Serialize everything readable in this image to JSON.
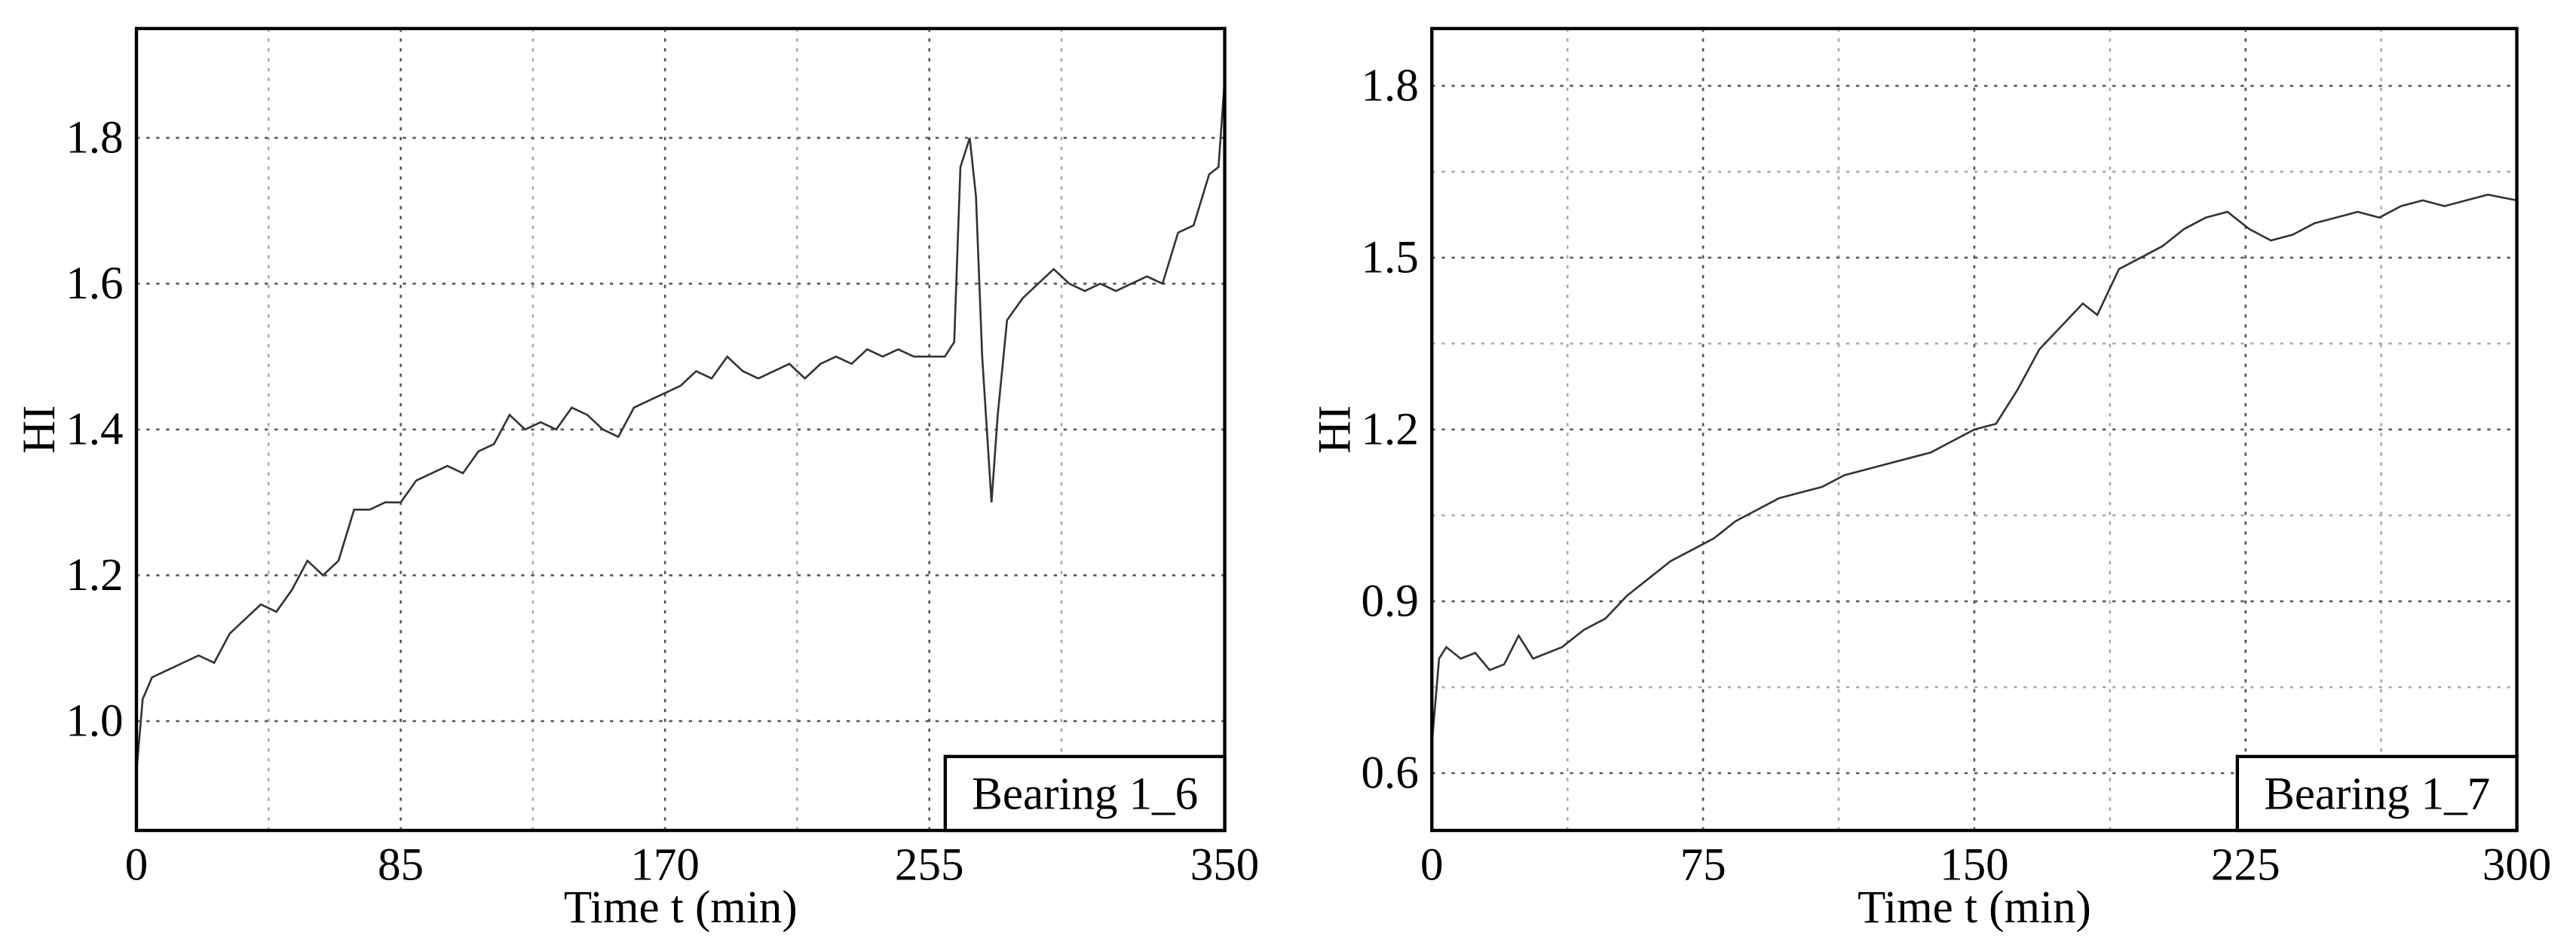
{
  "chart_data": [
    {
      "type": "line",
      "xlabel": "Time t (min)",
      "ylabel": "HI",
      "annotation": "Bearing 1_6",
      "color": "#333333",
      "xlim": [
        0,
        350
      ],
      "ylim": [
        0.85,
        1.95
      ],
      "xticks": [
        0,
        85,
        170,
        255,
        350
      ],
      "yticks": [
        {
          "value": 1,
          "label": "1.0"
        },
        1.2,
        1.4,
        1.6,
        1.8
      ],
      "minor_xgrid": [
        42.5,
        127.5,
        212.5,
        297.5
      ],
      "minor_ygrid": [],
      "grid": true,
      "x": [
        0,
        2,
        5,
        10,
        15,
        20,
        25,
        30,
        35,
        40,
        45,
        50,
        55,
        60,
        65,
        70,
        75,
        80,
        85,
        90,
        95,
        100,
        105,
        110,
        115,
        120,
        125,
        130,
        135,
        140,
        145,
        150,
        155,
        160,
        165,
        170,
        175,
        180,
        185,
        190,
        195,
        200,
        205,
        210,
        215,
        220,
        225,
        230,
        235,
        240,
        245,
        250,
        255,
        260,
        263,
        265,
        268,
        270,
        272,
        275,
        277,
        280,
        285,
        290,
        295,
        300,
        305,
        310,
        315,
        320,
        325,
        330,
        335,
        340,
        345,
        348,
        350
      ],
      "values": [
        0.93,
        1.03,
        1.06,
        1.07,
        1.08,
        1.09,
        1.08,
        1.12,
        1.14,
        1.16,
        1.15,
        1.18,
        1.22,
        1.2,
        1.22,
        1.29,
        1.29,
        1.3,
        1.3,
        1.33,
        1.34,
        1.35,
        1.34,
        1.37,
        1.38,
        1.42,
        1.4,
        1.41,
        1.4,
        1.43,
        1.42,
        1.4,
        1.39,
        1.43,
        1.44,
        1.45,
        1.46,
        1.48,
        1.47,
        1.5,
        1.48,
        1.47,
        1.48,
        1.49,
        1.47,
        1.49,
        1.5,
        1.49,
        1.51,
        1.5,
        1.51,
        1.5,
        1.5,
        1.5,
        1.52,
        1.76,
        1.8,
        1.72,
        1.5,
        1.3,
        1.42,
        1.55,
        1.58,
        1.6,
        1.62,
        1.6,
        1.59,
        1.6,
        1.59,
        1.6,
        1.61,
        1.6,
        1.67,
        1.68,
        1.75,
        1.76,
        1.88
      ]
    },
    {
      "type": "line",
      "xlabel": "Time t (min)",
      "ylabel": "HI",
      "annotation": "Bearing 1_7",
      "color": "#333333",
      "xlim": [
        0,
        300
      ],
      "ylim": [
        0.5,
        1.9
      ],
      "xticks": [
        0,
        75,
        150,
        225,
        300
      ],
      "yticks": [
        0.6,
        0.9,
        1.2,
        1.5,
        1.8
      ],
      "minor_xgrid": [
        37.5,
        112.5,
        187.5,
        262.5
      ],
      "minor_ygrid": [
        0.75,
        1.05,
        1.35,
        1.65
      ],
      "grid": true,
      "x": [
        0,
        2,
        4,
        8,
        12,
        16,
        20,
        24,
        28,
        32,
        36,
        42,
        48,
        54,
        60,
        66,
        72,
        78,
        84,
        90,
        96,
        102,
        108,
        114,
        120,
        126,
        132,
        138,
        144,
        150,
        156,
        162,
        168,
        174,
        180,
        184,
        190,
        196,
        202,
        208,
        214,
        220,
        226,
        232,
        238,
        244,
        250,
        256,
        262,
        268,
        274,
        280,
        286,
        292,
        300
      ],
      "values": [
        0.65,
        0.8,
        0.82,
        0.8,
        0.81,
        0.78,
        0.79,
        0.84,
        0.8,
        0.81,
        0.82,
        0.85,
        0.87,
        0.91,
        0.94,
        0.97,
        0.99,
        1.01,
        1.04,
        1.06,
        1.08,
        1.09,
        1.1,
        1.12,
        1.13,
        1.14,
        1.15,
        1.16,
        1.18,
        1.2,
        1.21,
        1.27,
        1.34,
        1.38,
        1.42,
        1.4,
        1.48,
        1.5,
        1.52,
        1.55,
        1.57,
        1.58,
        1.55,
        1.53,
        1.54,
        1.56,
        1.57,
        1.58,
        1.57,
        1.59,
        1.6,
        1.59,
        1.6,
        1.61,
        1.6
      ]
    }
  ]
}
